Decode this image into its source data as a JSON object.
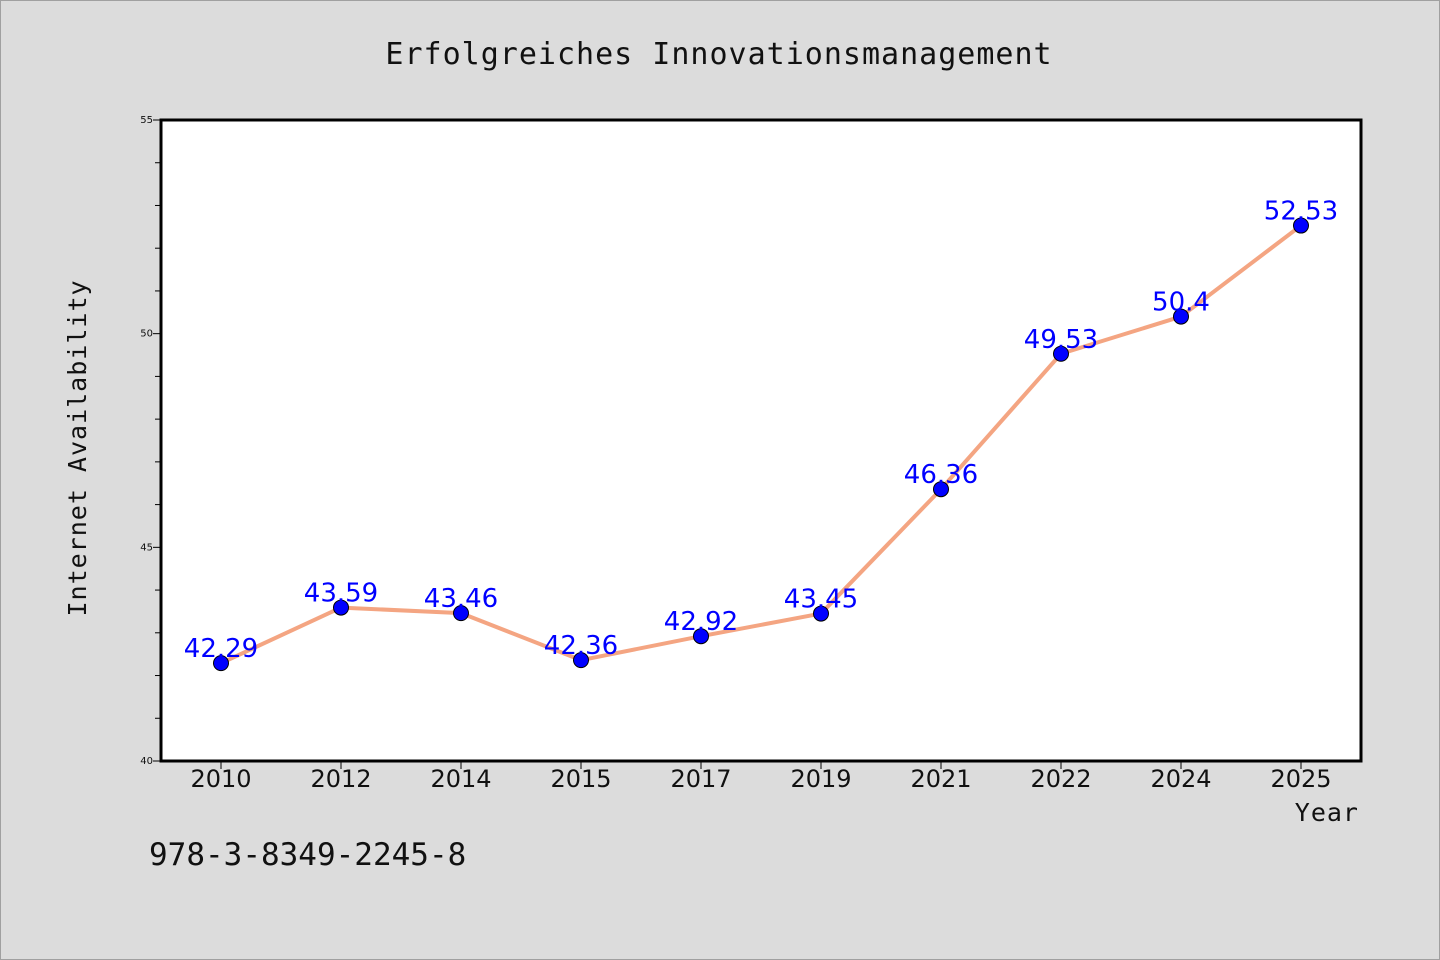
{
  "colors": {
    "background": "#dcdcdc",
    "plot_background": "#ffffff",
    "line": "#f4a582",
    "marker": "#0000ff",
    "data_label": "#0000ff"
  },
  "footnote": "978-3-8349-2245-8",
  "chart_data": {
    "type": "line",
    "title": "Erfolgreiches Innovationsmanagement",
    "xlabel": "Year",
    "ylabel": "Internet Availability",
    "categories": [
      "2010",
      "2012",
      "2014",
      "2015",
      "2017",
      "2019",
      "2021",
      "2022",
      "2024",
      "2025"
    ],
    "series": [
      {
        "values": [
          42.29,
          43.59,
          43.46,
          42.36,
          42.92,
          43.45,
          46.36,
          49.53,
          50.4,
          52.53
        ],
        "labels": [
          "42.29",
          "43.59",
          "43.46",
          "42.36",
          "42.92",
          "43.45",
          "46.36",
          "49.53",
          "50.4",
          "52.53"
        ]
      }
    ],
    "ylim": [
      40,
      55
    ],
    "y_ticks": [
      "40",
      "45",
      "50",
      "55"
    ],
    "y_minor_step": 1,
    "grid": false,
    "legend": "none"
  }
}
